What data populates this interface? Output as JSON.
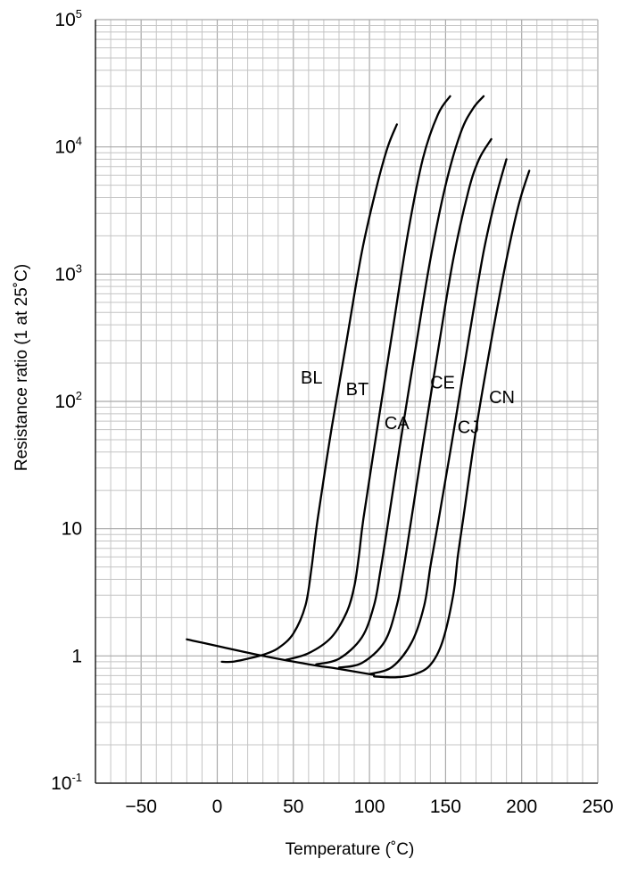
{
  "chart_data": {
    "type": "line",
    "xlabel": "Temperature (˚C)",
    "ylabel": "Resistance ratio (1 at 25˚C)",
    "xlim": [
      -80,
      250
    ],
    "ylim": [
      0.1,
      100000
    ],
    "y_scale": "log",
    "grid": true,
    "x_ticks": [
      -50,
      0,
      50,
      100,
      150,
      200,
      250
    ],
    "x_tick_labels": [
      "−50",
      "0",
      "50",
      "100",
      "150",
      "200",
      "250"
    ],
    "y_ticks": [
      0.1,
      1,
      10,
      100,
      1000,
      10000,
      100000
    ],
    "y_tick_labels": [
      {
        "base": "10",
        "sup": "-1"
      },
      {
        "base": "1",
        "sup": ""
      },
      {
        "base": "10",
        "sup": ""
      },
      {
        "base": "10",
        "sup": "2"
      },
      {
        "base": "10",
        "sup": "3"
      },
      {
        "base": "10",
        "sup": "4"
      },
      {
        "base": "10",
        "sup": "5"
      }
    ],
    "series": [
      {
        "name": "BL",
        "x": [
          3,
          10,
          20,
          30,
          40,
          50,
          58,
          62,
          66,
          75,
          85,
          95,
          105,
          112,
          118
        ],
        "y": [
          0.9,
          0.9,
          0.95,
          1.02,
          1.15,
          1.5,
          2.5,
          5,
          12,
          60,
          300,
          1500,
          5000,
          10000,
          15000
        ]
      },
      {
        "name": "BT",
        "x": [
          45,
          60,
          75,
          85,
          90,
          93,
          96,
          105,
          115,
          125,
          135,
          145,
          153
        ],
        "y": [
          0.93,
          1.05,
          1.4,
          2.2,
          3.5,
          6,
          12,
          60,
          350,
          2000,
          8000,
          18000,
          25000
        ]
      },
      {
        "name": "CA",
        "x": [
          65,
          80,
          95,
          103,
          107,
          111,
          120,
          130,
          140,
          150,
          160,
          168,
          175
        ],
        "y": [
          0.86,
          0.95,
          1.4,
          2.5,
          4.5,
          9,
          45,
          250,
          1300,
          5000,
          13000,
          20000,
          25000
        ]
      },
      {
        "name": "CE",
        "x": [
          80,
          95,
          110,
          118,
          122,
          126,
          135,
          145,
          155,
          165,
          172,
          180
        ],
        "y": [
          0.81,
          0.88,
          1.3,
          2.5,
          4.5,
          9,
          45,
          250,
          1300,
          4500,
          8000,
          11500
        ]
      },
      {
        "name": "CJ",
        "x": [
          100,
          115,
          128,
          136,
          140,
          145,
          155,
          165,
          175,
          183,
          190
        ],
        "y": [
          0.72,
          0.82,
          1.3,
          2.5,
          5,
          11,
          55,
          300,
          1500,
          4000,
          8000
        ]
      },
      {
        "name": "CN",
        "x": [
          103,
          118,
          130,
          140,
          148,
          155,
          158,
          162,
          170,
          180,
          190,
          198,
          205
        ],
        "y": [
          0.69,
          0.68,
          0.72,
          0.85,
          1.3,
          3,
          6,
          13,
          60,
          300,
          1300,
          3500,
          6500
        ]
      },
      {
        "name": "",
        "x": [
          -20,
          30,
          60,
          80,
          103
        ],
        "y": [
          1.35,
          1.0,
          0.86,
          0.79,
          0.71
        ]
      }
    ],
    "labels": [
      {
        "text": "BL",
        "x": 62,
        "y": 155
      },
      {
        "text": "BT",
        "x": 92,
        "y": 125
      },
      {
        "text": "CA",
        "x": 118,
        "y": 68
      },
      {
        "text": "CE",
        "x": 148,
        "y": 142
      },
      {
        "text": "CJ",
        "x": 165,
        "y": 63
      },
      {
        "text": "CN",
        "x": 187,
        "y": 108
      }
    ]
  }
}
